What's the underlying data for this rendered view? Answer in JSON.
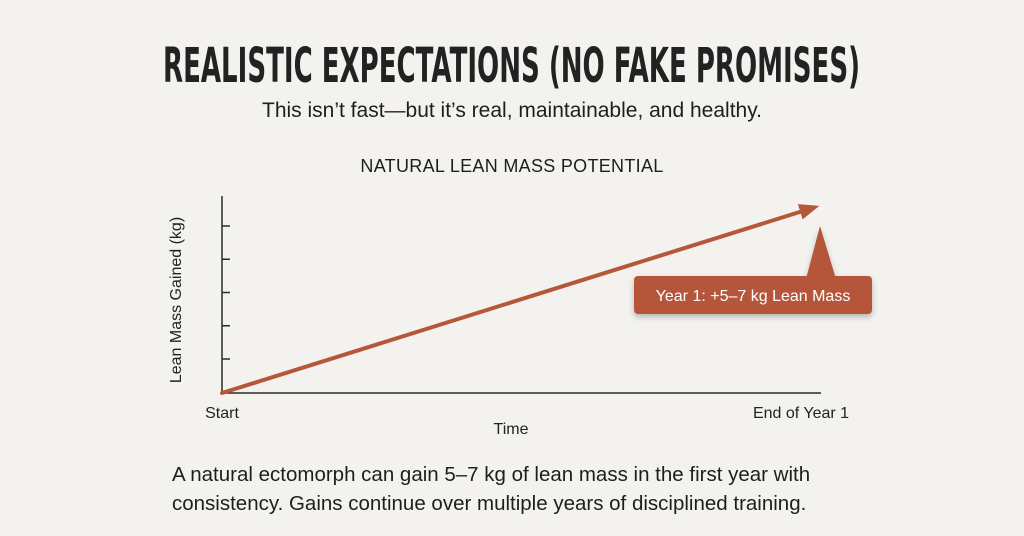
{
  "title": "REALISTIC EXPECTATIONS (NO FAKE PROMISES)",
  "subtitle": "This isn’t fast—but it’s real, maintainable, and healthy.",
  "footer": {
    "line1": "A natural ectomorph can gain 5–7 kg of lean mass in the first year with",
    "line2": "consistency. Gains continue over multiple years of disciplined training."
  },
  "colors": {
    "accent": "#b5573a",
    "background": "#f3f2ef",
    "text": "#1e1e1e"
  },
  "chart_data": {
    "type": "line",
    "title": "NATURAL LEAN MASS POTENTIAL",
    "xlabel": "Time",
    "ylabel": "Lean Mass Gained (kg)",
    "x_tick_labels": [
      "Start",
      "End of Year 1"
    ],
    "y_tick_count": 5,
    "y_tick_labels_shown": false,
    "grid": false,
    "series": [
      {
        "x": [
          "Start",
          "End of Year 1"
        ],
        "trend": "increasing, arrow-headed line",
        "color": "#b5573a"
      }
    ],
    "annotation": {
      "text": "Year 1: +5–7 kg Lean Mass",
      "points_to": "End of Year 1"
    }
  }
}
